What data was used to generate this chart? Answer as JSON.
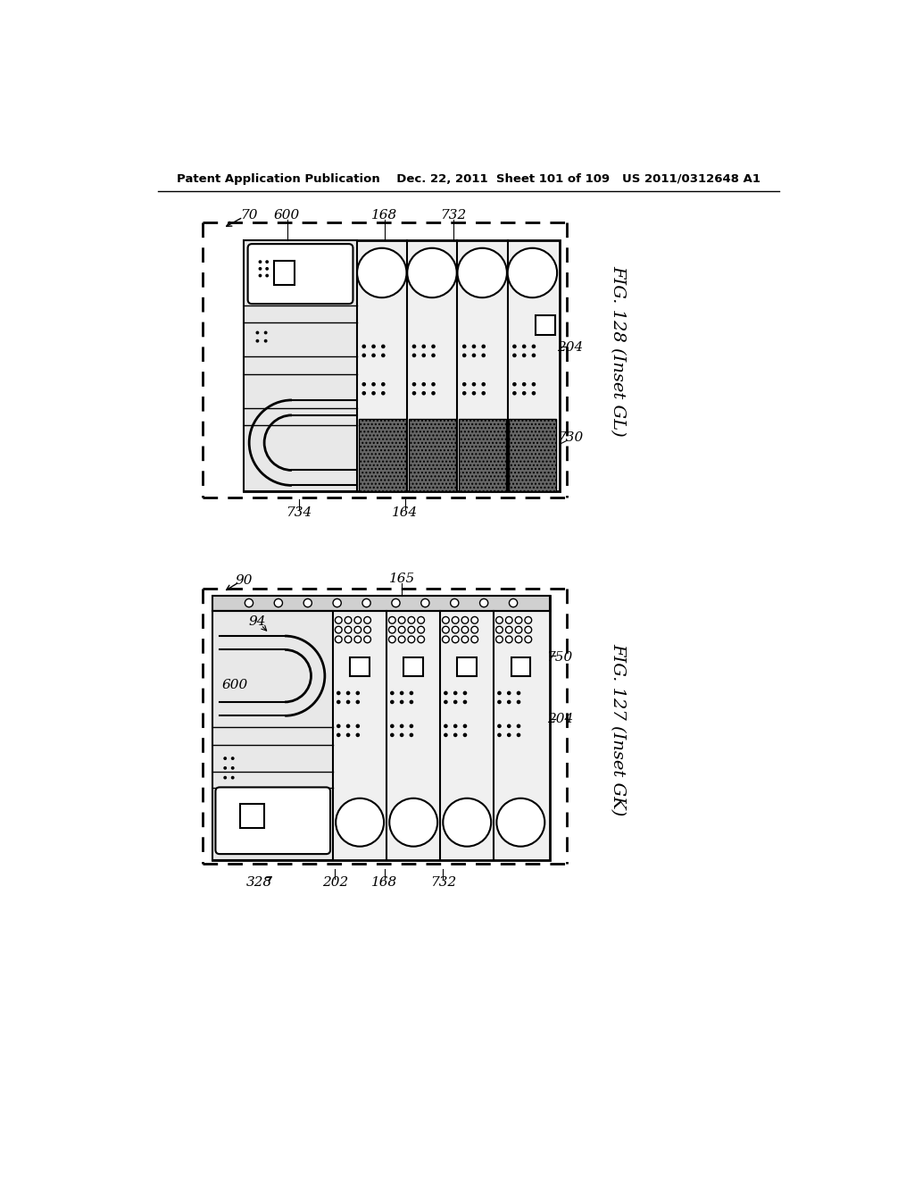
{
  "bg_color": "#ffffff",
  "header_text": "Patent Application Publication    Dec. 22, 2011  Sheet 101 of 109   US 2011/0312648 A1",
  "fig128_label": "FIG. 128 (Inset GL)",
  "fig127_label": "FIG. 127 (Inset GK)"
}
